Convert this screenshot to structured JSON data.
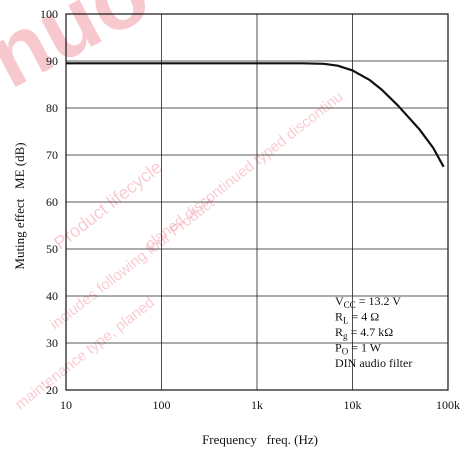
{
  "chart_data": {
    "type": "line",
    "x_scale": "log",
    "xlim": [
      10,
      100000
    ],
    "ylim": [
      20,
      100
    ],
    "grid": true,
    "xlabel": "Frequency   freq. (Hz)",
    "ylabel": "Muting effect   ME (dB)",
    "x_ticks": [
      {
        "value": 10,
        "label": "10"
      },
      {
        "value": 100,
        "label": "100"
      },
      {
        "value": 1000,
        "label": "1k"
      },
      {
        "value": 10000,
        "label": "10k"
      },
      {
        "value": 100000,
        "label": "100k"
      }
    ],
    "y_ticks": [
      {
        "value": 20,
        "label": "20"
      },
      {
        "value": 30,
        "label": "30"
      },
      {
        "value": 40,
        "label": "40"
      },
      {
        "value": 50,
        "label": "50"
      },
      {
        "value": 60,
        "label": "60"
      },
      {
        "value": 70,
        "label": "70"
      },
      {
        "value": 80,
        "label": "80"
      },
      {
        "value": 90,
        "label": "90"
      },
      {
        "value": 100,
        "label": "100"
      }
    ],
    "series": [
      {
        "x": [
          10,
          100,
          1000,
          3000,
          5000,
          7000,
          10000,
          15000,
          20000,
          30000,
          50000,
          70000,
          90000
        ],
        "y": [
          89.5,
          89.5,
          89.5,
          89.5,
          89.4,
          89.0,
          88.0,
          86.0,
          84.0,
          80.5,
          75.5,
          71.5,
          67.5
        ]
      }
    ],
    "conditions": [
      {
        "main": "V",
        "sub": "CC",
        "rest": " = 13.2 V"
      },
      {
        "main": "R",
        "sub": "L",
        "rest": " = 4 Ω"
      },
      {
        "main": "R",
        "sub": "g",
        "rest": " = 4.7 kΩ"
      },
      {
        "main": "P",
        "sub": "O",
        "rest": " = 1 W"
      },
      {
        "main": "DIN audio filter",
        "sub": "",
        "rest": ""
      }
    ]
  },
  "watermark": {
    "big": "nuo",
    "lines": [
      "Product lifecycle",
      "planed discontinued typed discontinu",
      "includes following four Product",
      "maintenance type, planed"
    ]
  }
}
